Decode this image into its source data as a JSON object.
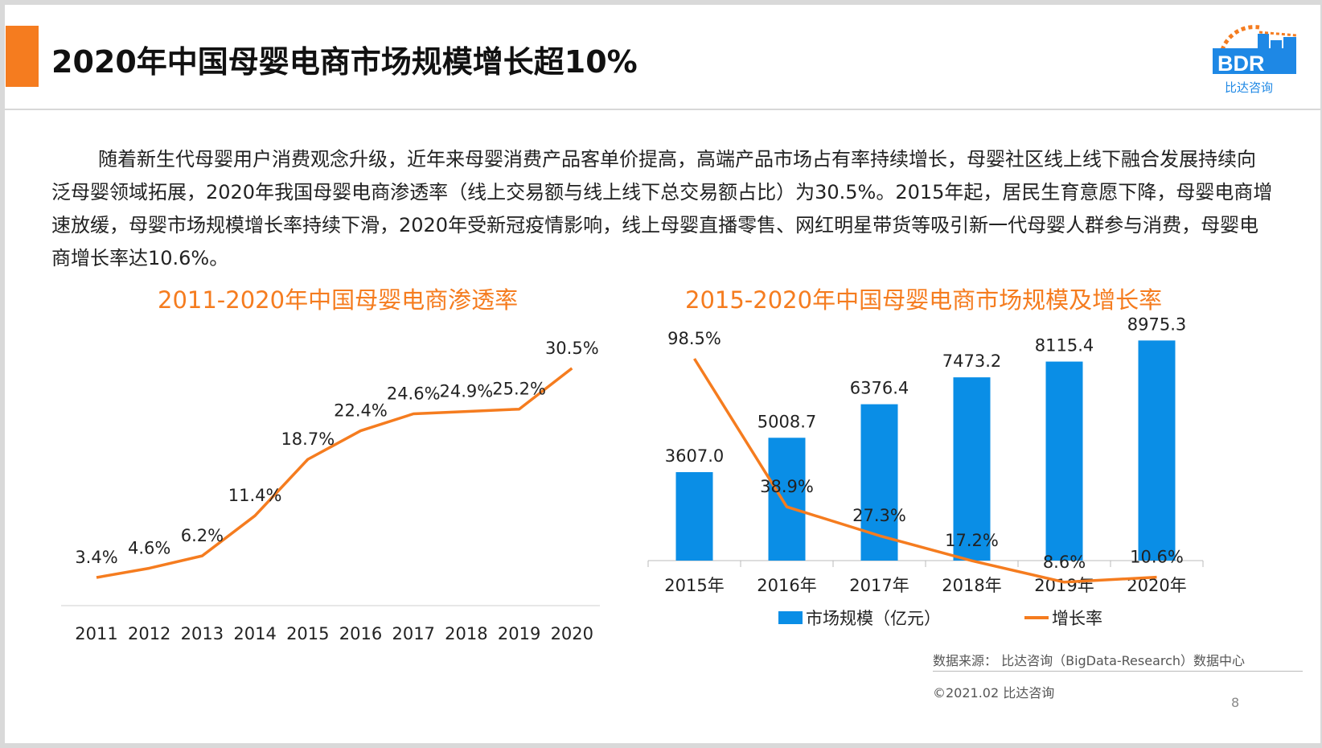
{
  "header": {
    "title": "2020年中国母婴电商市场规模增长超10%",
    "accent_color": "#f57c1f"
  },
  "logo": {
    "brand": "BDR",
    "subtitle": "比达咨询",
    "colors": [
      "#1e88e5",
      "#f57c1f"
    ]
  },
  "body": {
    "paragraph": "随着新生代母婴用户消费观念升级，近年来母婴消费产品客单价提高，高端产品市场占有率持续增长，母婴社区线上线下融合发展持续向泛母婴领域拓展，2020年我国母婴电商渗透率（线上交易额与线上线下总交易额占比）为30.5%。2015年起，居民生育意愿下降，母婴电商增速放缓，母婴市场规模增长率持续下滑，2020年受新冠疫情影响，线上母婴直播零售、网红明星带货等吸引新一代母婴人群参与消费，母婴电商增长率达10.6%。"
  },
  "footer": {
    "source": "数据来源： 比达咨询（BigData-Research）数据中心",
    "copyright": "©2021.02 比达咨询",
    "page_number": "8"
  },
  "chart_data": [
    {
      "type": "line",
      "title": "2011-2020年中国母婴电商渗透率",
      "categories": [
        "2011",
        "2012",
        "2013",
        "2014",
        "2015",
        "2016",
        "2017",
        "2018",
        "2019",
        "2020"
      ],
      "series": [
        {
          "values": [
            3.4,
            4.6,
            6.2,
            11.4,
            18.7,
            22.4,
            24.6,
            24.9,
            25.2,
            30.5
          ],
          "labels": [
            "3.4%",
            "4.6%",
            "6.2%",
            "11.4%",
            "18.7%",
            "22.4%",
            "24.6%",
            "24.9%",
            "25.2%",
            "30.5%"
          ],
          "color": "#f57c1f"
        }
      ],
      "grid": false,
      "legend": "none"
    },
    {
      "type": "bar",
      "title": "2015-2020年中国母婴电商市场规模及增长率",
      "categories": [
        "2015年",
        "2016年",
        "2017年",
        "2018年",
        "2019年",
        "2020年"
      ],
      "series": [
        {
          "name": "市场规模（亿元）",
          "type": "bar",
          "values": [
            3607.0,
            5008.7,
            6376.4,
            7473.2,
            8115.4,
            8975.3
          ],
          "labels": [
            "3607.0",
            "5008.7",
            "6376.4",
            "7473.2",
            "8115.4",
            "8975.3"
          ],
          "color": "#0a8ee6"
        },
        {
          "name": "增长率",
          "type": "line",
          "values": [
            98.5,
            38.9,
            27.3,
            17.2,
            8.6,
            10.6
          ],
          "labels": [
            "98.5%",
            "38.9%",
            "27.3%",
            "17.2%",
            "8.6%",
            "10.6%"
          ],
          "color": "#f57c1f"
        }
      ],
      "grid": false,
      "legend": "bottom"
    }
  ]
}
